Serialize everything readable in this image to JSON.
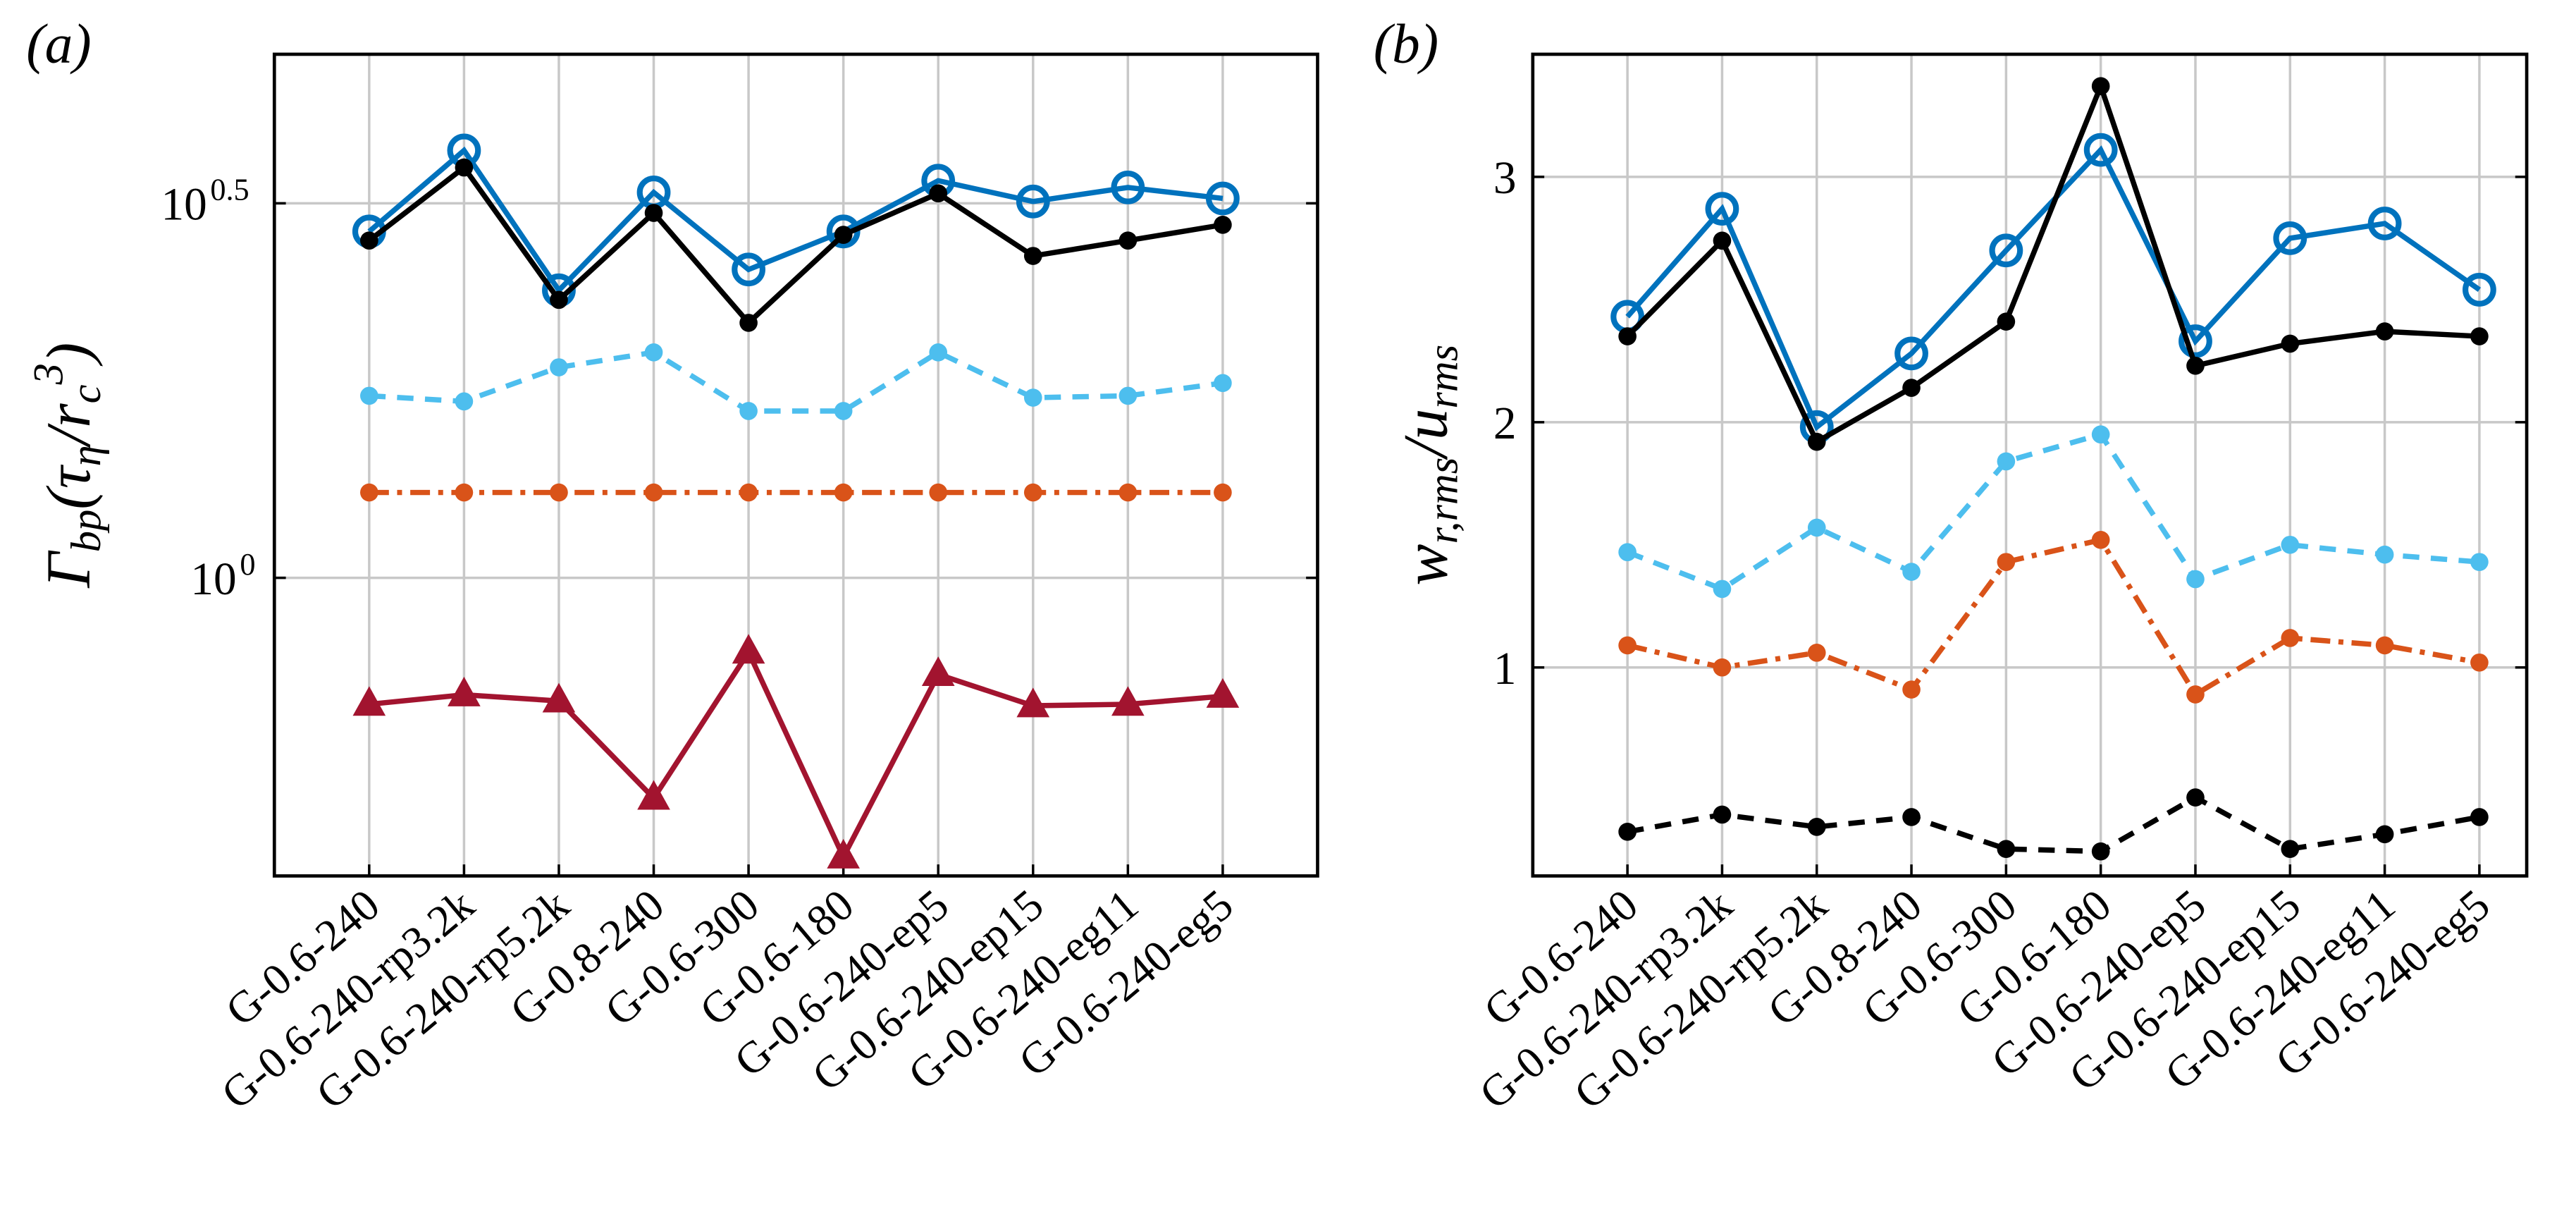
{
  "chart_data": [
    {
      "type": "line",
      "panel_label": "(a)",
      "yscale": "log",
      "grid": true,
      "ylabel": [
        {
          "text": "Γ"
        },
        {
          "text": "bp",
          "pos": "sub"
        },
        {
          "text": "(τ"
        },
        {
          "text": "η",
          "pos": "sub"
        },
        {
          "text": "/r"
        },
        {
          "text": "c",
          "pos": "sub"
        },
        {
          "text": "3",
          "pos": "sup"
        },
        {
          "text": ")"
        }
      ],
      "categories": [
        "G-0.6-240",
        "G-0.6-240-rp3.2k",
        "G-0.6-240-rp5.2k",
        "G-0.8-240",
        "G-0.6-300",
        "G-0.6-180",
        "G-0.6-240-ep5",
        "G-0.6-240-ep15",
        "G-0.6-240-eg11",
        "G-0.6-240-eg5"
      ],
      "xlim": [
        0,
        11
      ],
      "ylim": [
        0.4,
        5.0
      ],
      "yticks": [
        {
          "value": 1,
          "label": "10",
          "exponent": "0"
        },
        {
          "value": 3.1623,
          "label": "10",
          "exponent": "0.5"
        }
      ],
      "series": [
        {
          "color": "#0072bd",
          "line_style": "solid",
          "marker": "open-circle",
          "values": [
            2.9,
            3.72,
            2.42,
            3.27,
            2.58,
            2.9,
            3.39,
            3.18,
            3.32,
            3.21
          ]
        },
        {
          "color": "#000000",
          "line_style": "solid",
          "marker": "dot",
          "values": [
            2.82,
            3.53,
            2.35,
            3.07,
            2.19,
            2.87,
            3.26,
            2.69,
            2.82,
            2.96
          ]
        },
        {
          "color": "#4dbeee",
          "line_style": "dash",
          "marker": "dot",
          "values": [
            1.75,
            1.72,
            1.91,
            2.0,
            1.67,
            1.67,
            2.0,
            1.74,
            1.75,
            1.82
          ]
        },
        {
          "color": "#d95319",
          "line_style": "dashdot",
          "marker": "dot",
          "values": [
            1.3,
            1.3,
            1.3,
            1.3,
            1.3,
            1.3,
            1.3,
            1.3,
            1.3,
            1.3
          ]
        },
        {
          "color": "#a2142f",
          "line_style": "solid",
          "marker": "triangle",
          "values": [
            0.678,
            0.698,
            0.685,
            0.508,
            0.796,
            0.424,
            0.743,
            0.675,
            0.678,
            0.695
          ]
        }
      ]
    },
    {
      "type": "line",
      "panel_label": "(b)",
      "yscale": "linear",
      "grid": true,
      "ylabel": [
        {
          "text": "w"
        },
        {
          "text": "r,rms",
          "pos": "sub"
        },
        {
          "text": "/u"
        },
        {
          "text": "rms",
          "pos": "sub"
        }
      ],
      "categories": [
        "G-0.6-240",
        "G-0.6-240-rp3.2k",
        "G-0.6-240-rp5.2k",
        "G-0.8-240",
        "G-0.6-300",
        "G-0.6-180",
        "G-0.6-240-ep5",
        "G-0.6-240-ep15",
        "G-0.6-240-eg11",
        "G-0.6-240-eg5"
      ],
      "xlim": [
        0,
        10.5
      ],
      "ylim": [
        0.15,
        3.5
      ],
      "yticks": [
        1,
        2,
        3
      ],
      "series": [
        {
          "color": "#0072bd",
          "line_style": "solid",
          "marker": "open-circle",
          "values": [
            2.43,
            2.87,
            1.98,
            2.28,
            2.7,
            3.11,
            2.33,
            2.75,
            2.81,
            2.54
          ]
        },
        {
          "color": "#000000",
          "line_style": "solid",
          "marker": "dot",
          "values": [
            2.35,
            2.74,
            1.92,
            2.14,
            2.41,
            3.37,
            2.23,
            2.32,
            2.37,
            2.35
          ]
        },
        {
          "color": "#4dbeee",
          "line_style": "dash",
          "marker": "dot",
          "values": [
            1.47,
            1.32,
            1.57,
            1.39,
            1.84,
            1.95,
            1.36,
            1.5,
            1.46,
            1.43
          ]
        },
        {
          "color": "#d95319",
          "line_style": "dashdot",
          "marker": "dot",
          "values": [
            1.09,
            1.0,
            1.06,
            0.91,
            1.43,
            1.52,
            0.89,
            1.12,
            1.09,
            1.02
          ]
        },
        {
          "color": "#000000",
          "line_style": "dash",
          "marker": "dot",
          "values": [
            0.33,
            0.4,
            0.35,
            0.39,
            0.26,
            0.25,
            0.47,
            0.26,
            0.32,
            0.39
          ]
        }
      ]
    }
  ]
}
